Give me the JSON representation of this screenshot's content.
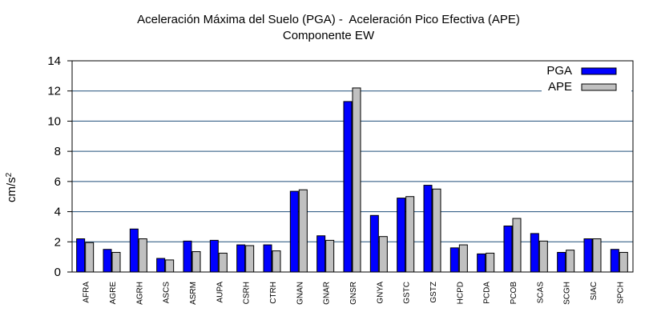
{
  "chart_data": {
    "type": "bar",
    "title": "Aceleración Máxima del Suelo (PGA) -  Aceleración Pico Efectiva (APE)",
    "subtitle": "Componente EW",
    "ylabel": "cm/s",
    "ylabel_superscript": "2",
    "xlabel": "",
    "ylim": [
      0,
      14
    ],
    "yticks": [
      0,
      2,
      4,
      6,
      8,
      10,
      12,
      14
    ],
    "grid": true,
    "legend_position": "top-right",
    "categories": [
      "AFRA",
      "AGRE",
      "AGRH",
      "ASCS",
      "ASRM",
      "AUPA",
      "CSRH",
      "CTRH",
      "GNAN",
      "GNAR",
      "GNSR",
      "GNYA",
      "GSTC",
      "GSTZ",
      "HCPD",
      "PCDA",
      "PCOB",
      "SCAS",
      "SCGH",
      "SIAC",
      "SPCH"
    ],
    "series": [
      {
        "name": "PGA",
        "color": "#0000ff",
        "values": [
          2.2,
          1.5,
          2.85,
          0.9,
          2.05,
          2.1,
          1.8,
          1.8,
          5.35,
          2.4,
          11.3,
          3.75,
          4.9,
          5.75,
          1.6,
          1.2,
          3.05,
          2.55,
          1.3,
          2.2,
          1.5
        ]
      },
      {
        "name": "APE",
        "color": "#c0c0c0",
        "values": [
          1.95,
          1.3,
          2.2,
          0.8,
          1.35,
          1.25,
          1.75,
          1.4,
          5.45,
          2.1,
          12.2,
          2.35,
          5.0,
          5.5,
          1.8,
          1.25,
          3.55,
          2.05,
          1.45,
          2.2,
          1.3
        ]
      }
    ]
  }
}
